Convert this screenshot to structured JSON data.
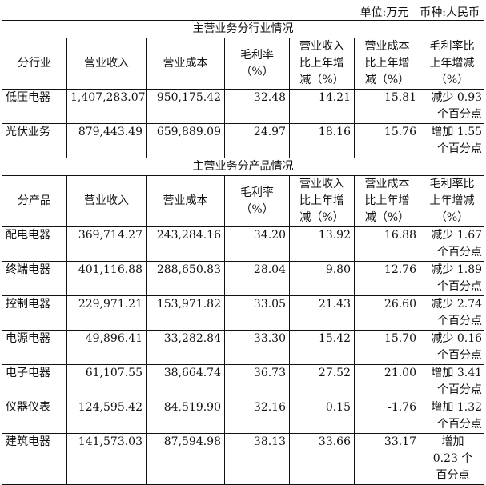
{
  "unit_label": "单位:万元",
  "currency_label": "币种:人民币",
  "headers": [
    "营业收入",
    "营业成本",
    "毛利率（%）",
    "营业收入比上年增减（%）",
    "营业成本比上年增减（%）",
    "毛利率比上年增减（%）"
  ],
  "header_lines": {
    "rev_change": [
      "营业收入",
      "比上年增",
      "减（%）"
    ],
    "cost_change": [
      "营业成本",
      "比上年增",
      "减（%）"
    ],
    "margin_change": [
      "毛利率比",
      "上年增减",
      "（%）"
    ]
  },
  "industry": {
    "section_title": "主营业务分行业情况",
    "first_header": "分行业",
    "rows": [
      {
        "name": "低压电器",
        "revenue": "1,407,283.07",
        "cost": "950,175.42",
        "margin": "32.48",
        "rev_change": "14.21",
        "cost_change": "15.81",
        "margin_change": [
          "减少 0.93",
          "个百分点"
        ]
      },
      {
        "name": "光伏业务",
        "revenue": "879,443.49",
        "cost": "659,889.09",
        "margin": "24.97",
        "rev_change": "18.16",
        "cost_change": "15.76",
        "margin_change": [
          "增加 1.55",
          "个百分点"
        ]
      }
    ]
  },
  "product": {
    "section_title": "主营业务分产品情况",
    "first_header": "分产品",
    "rows": [
      {
        "name": "配电电器",
        "revenue": "369,714.27",
        "cost": "243,284.16",
        "margin": "34.20",
        "rev_change": "13.92",
        "cost_change": "16.88",
        "margin_change": [
          "减少 1.67",
          "个百分点"
        ]
      },
      {
        "name": "终端电器",
        "revenue": "401,116.88",
        "cost": "288,650.83",
        "margin": "28.04",
        "rev_change": "9.80",
        "cost_change": "12.76",
        "margin_change": [
          "减少 1.89",
          "个百分点"
        ]
      },
      {
        "name": "控制电器",
        "revenue": "229,971.21",
        "cost": "153,971.82",
        "margin": "33.05",
        "rev_change": "21.43",
        "cost_change": "26.60",
        "margin_change": [
          "减少 2.74",
          "个百分点"
        ]
      },
      {
        "name": "电源电器",
        "revenue": "49,896.41",
        "cost": "33,282.84",
        "margin": "33.30",
        "rev_change": "15.42",
        "cost_change": "15.70",
        "margin_change": [
          "减少 0.16",
          "个百分点"
        ]
      },
      {
        "name": "电子电器",
        "revenue": "61,107.55",
        "cost": "38,664.74",
        "margin": "36.73",
        "rev_change": "27.52",
        "cost_change": "21.00",
        "margin_change": [
          "增加 3.41",
          "个百分点"
        ]
      },
      {
        "name": "仪器仪表",
        "revenue": "124,595.42",
        "cost": "84,519.90",
        "margin": "32.16",
        "rev_change": "0.15",
        "cost_change": "-1.76",
        "margin_change": [
          "增加 1.32",
          "个百分点"
        ]
      },
      {
        "name": "建筑电器",
        "revenue": "141,573.03",
        "cost": "87,594.98",
        "margin": "38.13",
        "rev_change": "33.66",
        "cost_change": "33.17",
        "margin_change": [
          "增加",
          "0.23 个",
          "百分点"
        ]
      }
    ]
  }
}
